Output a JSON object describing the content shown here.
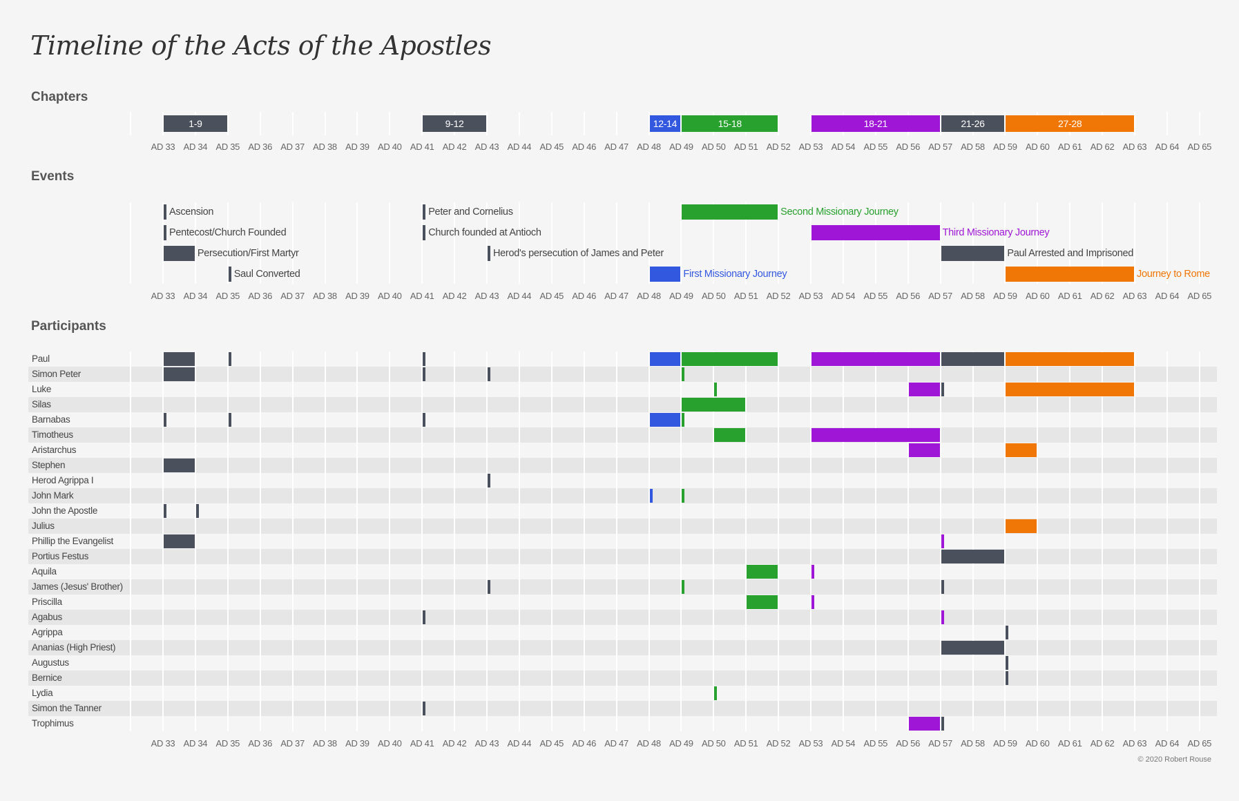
{
  "title": "Timeline of the Acts of the Apostles",
  "footer": "© 2020 Robert Rouse",
  "colors": {
    "background": "#f5f5f5",
    "band": "#e6e6e6",
    "dark": "#4a505c",
    "blue": "#3358e0",
    "green": "#28a12e",
    "purple": "#a016d6",
    "orange": "#f07605"
  },
  "chart_data": {
    "type": "bar",
    "orientation": "horizontal-timeline",
    "x_range": [
      32,
      65
    ],
    "x_ticks": [
      "AD 33",
      "AD 34",
      "AD 35",
      "AD 36",
      "AD 37",
      "AD 38",
      "AD 39",
      "AD 40",
      "AD 41",
      "AD 42",
      "AD 43",
      "AD 44",
      "AD 45",
      "AD 46",
      "AD 47",
      "AD 48",
      "AD 49",
      "AD 50",
      "AD 51",
      "AD 52",
      "AD 53",
      "AD 54",
      "AD 55",
      "AD 56",
      "AD 57",
      "AD 58",
      "AD 59",
      "AD 60",
      "AD 61",
      "AD 62",
      "AD 63",
      "AD 64",
      "AD 65"
    ],
    "grid": true,
    "chapters": {
      "heading": "Chapters",
      "bars": [
        {
          "label": "1-9",
          "start": 33,
          "end": 35,
          "color": "dark"
        },
        {
          "label": "9-12",
          "start": 41,
          "end": 43,
          "color": "dark"
        },
        {
          "label": "12-14",
          "start": 48,
          "end": 49,
          "color": "blue"
        },
        {
          "label": "15-18",
          "start": 49,
          "end": 52,
          "color": "green"
        },
        {
          "label": "18-21",
          "start": 53,
          "end": 57,
          "color": "purple"
        },
        {
          "label": "21-26",
          "start": 57,
          "end": 59,
          "color": "dark"
        },
        {
          "label": "27-28",
          "start": 59,
          "end": 63,
          "color": "orange"
        }
      ]
    },
    "events": {
      "heading": "Events",
      "items": [
        {
          "label": "Ascension",
          "row": 0,
          "start": 33,
          "end": 33,
          "color": "dark"
        },
        {
          "label": "Pentecost/Church Founded",
          "row": 1,
          "start": 33,
          "end": 33,
          "color": "dark"
        },
        {
          "label": "Persecution/First Martyr",
          "row": 2,
          "start": 33,
          "end": 34,
          "color": "dark"
        },
        {
          "label": "Saul Converted",
          "row": 3,
          "start": 35,
          "end": 35,
          "color": "dark"
        },
        {
          "label": "Peter and Cornelius",
          "row": 0,
          "start": 41,
          "end": 41,
          "color": "dark"
        },
        {
          "label": "Church founded at Antioch",
          "row": 1,
          "start": 41,
          "end": 41,
          "color": "dark"
        },
        {
          "label": "Herod's persecution of James and Peter",
          "row": 2,
          "start": 43,
          "end": 43,
          "color": "dark"
        },
        {
          "label": "First Missionary Journey",
          "row": 3,
          "start": 48,
          "end": 49,
          "color": "blue"
        },
        {
          "label": "Second Missionary Journey",
          "row": 0,
          "start": 49,
          "end": 52,
          "color": "green"
        },
        {
          "label": "Third Missionary Journey",
          "row": 1,
          "start": 53,
          "end": 57,
          "color": "purple"
        },
        {
          "label": "Paul Arrested and Imprisoned",
          "row": 2,
          "start": 57,
          "end": 59,
          "color": "dark"
        },
        {
          "label": "Journey to Rome",
          "row": 3,
          "start": 59,
          "end": 63,
          "color": "orange"
        }
      ]
    },
    "participants": {
      "heading": "Participants",
      "rows": [
        {
          "name": "Paul",
          "segments": [
            [
              33,
              34,
              "dark"
            ],
            [
              35,
              35,
              "dark"
            ],
            [
              41,
              41,
              "dark"
            ],
            [
              48,
              49,
              "blue"
            ],
            [
              49,
              52,
              "green"
            ],
            [
              53,
              57,
              "purple"
            ],
            [
              57,
              59,
              "dark"
            ],
            [
              59,
              63,
              "orange"
            ]
          ]
        },
        {
          "name": "Simon Peter",
          "segments": [
            [
              33,
              34,
              "dark"
            ],
            [
              41,
              41,
              "dark"
            ],
            [
              43,
              43,
              "dark"
            ],
            [
              49,
              49,
              "green"
            ]
          ]
        },
        {
          "name": "Luke",
          "segments": [
            [
              50,
              50,
              "green"
            ],
            [
              56,
              57,
              "purple"
            ],
            [
              57,
              57,
              "dark"
            ],
            [
              59,
              63,
              "orange"
            ]
          ]
        },
        {
          "name": "Silas",
          "segments": [
            [
              49,
              51,
              "green"
            ]
          ]
        },
        {
          "name": "Barnabas",
          "segments": [
            [
              33,
              33,
              "dark"
            ],
            [
              35,
              35,
              "dark"
            ],
            [
              41,
              41,
              "dark"
            ],
            [
              48,
              49,
              "blue"
            ],
            [
              49,
              49,
              "green"
            ]
          ]
        },
        {
          "name": "Timotheus",
          "segments": [
            [
              50,
              51,
              "green"
            ],
            [
              53,
              57,
              "purple"
            ]
          ]
        },
        {
          "name": "Aristarchus",
          "segments": [
            [
              56,
              57,
              "purple"
            ],
            [
              59,
              60,
              "orange"
            ]
          ]
        },
        {
          "name": "Stephen",
          "segments": [
            [
              33,
              34,
              "dark"
            ]
          ]
        },
        {
          "name": "Herod Agrippa I",
          "segments": [
            [
              43,
              43,
              "dark"
            ]
          ]
        },
        {
          "name": "John Mark",
          "segments": [
            [
              48,
              48,
              "blue"
            ],
            [
              49,
              49,
              "green"
            ]
          ]
        },
        {
          "name": "John the Apostle",
          "segments": [
            [
              33,
              33,
              "dark"
            ],
            [
              34,
              34,
              "dark"
            ]
          ]
        },
        {
          "name": "Julius",
          "segments": [
            [
              59,
              60,
              "orange"
            ]
          ]
        },
        {
          "name": "Phillip the Evangelist",
          "segments": [
            [
              33,
              34,
              "dark"
            ],
            [
              57,
              57,
              "purple"
            ]
          ]
        },
        {
          "name": "Portius Festus",
          "segments": [
            [
              57,
              59,
              "dark"
            ]
          ]
        },
        {
          "name": "Aquila",
          "segments": [
            [
              51,
              52,
              "green"
            ],
            [
              53,
              53,
              "purple"
            ]
          ]
        },
        {
          "name": "James (Jesus' Brother)",
          "segments": [
            [
              43,
              43,
              "dark"
            ],
            [
              49,
              49,
              "green"
            ],
            [
              57,
              57,
              "dark"
            ]
          ]
        },
        {
          "name": "Priscilla",
          "segments": [
            [
              51,
              52,
              "green"
            ],
            [
              53,
              53,
              "purple"
            ]
          ]
        },
        {
          "name": "Agabus",
          "segments": [
            [
              41,
              41,
              "dark"
            ],
            [
              57,
              57,
              "purple"
            ]
          ]
        },
        {
          "name": "Agrippa",
          "segments": [
            [
              59,
              59,
              "dark"
            ]
          ]
        },
        {
          "name": "Ananias (High Priest)",
          "segments": [
            [
              57,
              59,
              "dark"
            ]
          ]
        },
        {
          "name": "Augustus",
          "segments": [
            [
              59,
              59,
              "dark"
            ]
          ]
        },
        {
          "name": "Bernice",
          "segments": [
            [
              59,
              59,
              "dark"
            ]
          ]
        },
        {
          "name": "Lydia",
          "segments": [
            [
              50,
              50,
              "green"
            ]
          ]
        },
        {
          "name": "Simon the Tanner",
          "segments": [
            [
              41,
              41,
              "dark"
            ]
          ]
        },
        {
          "name": "Trophimus",
          "segments": [
            [
              56,
              57,
              "purple"
            ],
            [
              57,
              57,
              "dark"
            ]
          ]
        }
      ]
    }
  }
}
